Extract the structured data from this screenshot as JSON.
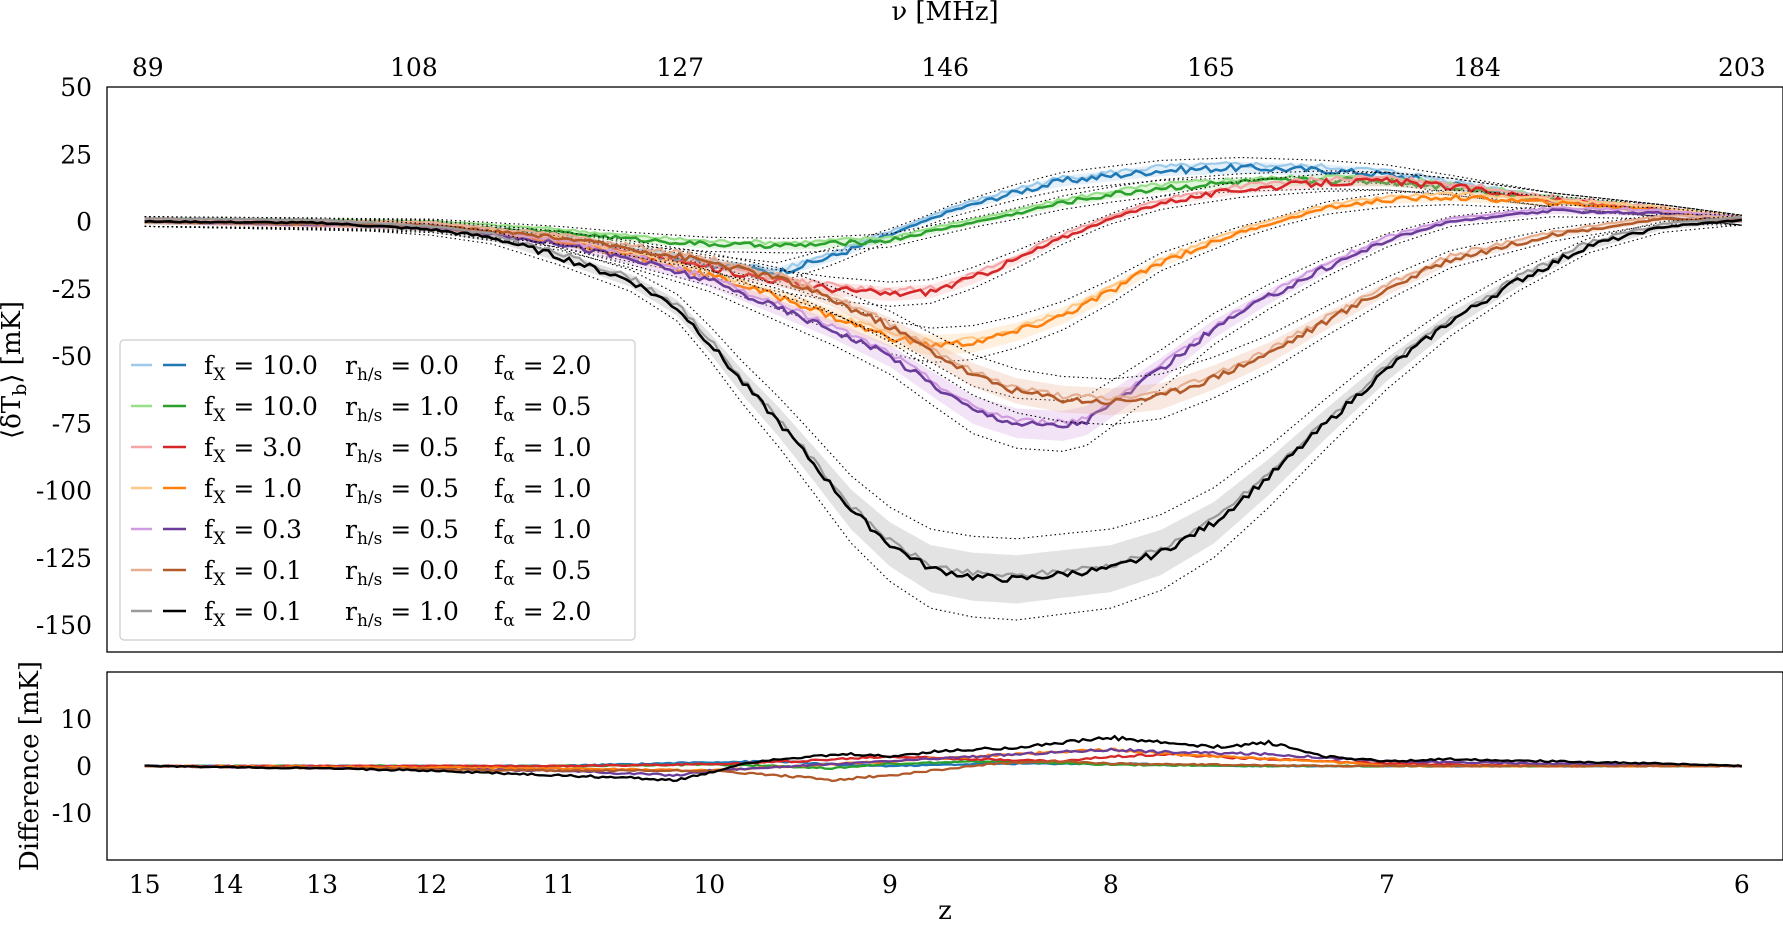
{
  "chart_data": [
    {
      "type": "line",
      "panel": "main",
      "top_xlabel": "ν [MHz]",
      "ylabel_parts": [
        "⟨δT",
        "b",
        "⟩ [mK]"
      ],
      "ylim": [
        -160,
        50
      ],
      "x_is_redshift": true,
      "xlim_z": [
        15.5,
        5.9
      ],
      "yticks": [
        50,
        25,
        0,
        -25,
        -50,
        -75,
        -100,
        -125,
        -150
      ],
      "top_ticks": [
        {
          "label": "89",
          "z": 14.96
        },
        {
          "label": "108",
          "z": 12.15
        },
        {
          "label": "127",
          "z": 10.18
        },
        {
          "label": "146",
          "z": 8.73
        },
        {
          "label": "165",
          "z": 7.61
        },
        {
          "label": "184",
          "z": 6.72
        },
        {
          "label": "203",
          "z": 6.0
        }
      ],
      "grid": false,
      "legend_position": "lower-left",
      "series": [
        {
          "color_light": "#9ecae9",
          "color": "#1f77b4",
          "fx": "10.0",
          "rhs": "0.0",
          "fa": "2.0",
          "z": [
            15,
            12,
            11,
            10.5,
            10,
            9.6,
            9.3,
            9.0,
            8.7,
            8.4,
            8.2,
            8.0,
            7.8,
            7.5,
            7.2,
            7.0,
            6.8,
            6.5,
            6.2,
            6.0
          ],
          "y": [
            0,
            -1.5,
            -6,
            -11,
            -16,
            -19,
            -13,
            -5,
            4,
            11,
            15,
            17,
            19,
            20,
            19,
            17.5,
            14,
            8,
            4,
            0.5
          ]
        },
        {
          "color_light": "#98df8a",
          "color": "#2ca02c",
          "fx": "10.0",
          "rhs": "1.0",
          "fa": "0.5",
          "z": [
            15,
            12,
            11,
            10.5,
            10,
            9.5,
            9.0,
            8.7,
            8.4,
            8.2,
            8.0,
            7.8,
            7.5,
            7.2,
            7.0,
            6.8,
            6.5,
            6.2,
            6.0
          ],
          "y": [
            0,
            -1,
            -4,
            -6.5,
            -8.5,
            -9,
            -7,
            -2,
            3,
            7,
            10,
            12.5,
            14.5,
            15.5,
            15,
            13,
            8,
            4,
            0.5
          ]
        },
        {
          "color_light": "#f4a6a6",
          "color": "#d62728",
          "fx": "3.0",
          "rhs": "0.5",
          "fa": "1.0",
          "z": [
            15,
            12,
            11,
            10.5,
            10,
            9.6,
            9.3,
            9.0,
            8.8,
            8.6,
            8.4,
            8.2,
            8.0,
            7.8,
            7.5,
            7.2,
            7.0,
            6.8,
            6.5,
            6.2,
            6.0
          ],
          "y": [
            0,
            -2,
            -7,
            -12,
            -17,
            -22,
            -25,
            -27,
            -26,
            -21,
            -14,
            -6,
            1,
            7,
            12,
            14.5,
            15,
            13,
            8,
            4,
            0.5
          ]
        },
        {
          "color_light": "#ffc887",
          "color": "#ff7f0e",
          "fx": "1.0",
          "rhs": "0.5",
          "fa": "1.0",
          "z": [
            15,
            12,
            11,
            10.5,
            10,
            9.5,
            9.2,
            9.0,
            8.8,
            8.6,
            8.4,
            8.2,
            8.0,
            7.8,
            7.5,
            7.2,
            7.0,
            6.8,
            6.5,
            6.2,
            6.0
          ],
          "y": [
            0,
            -2,
            -7,
            -13,
            -20,
            -30,
            -38,
            -43,
            -46,
            -45,
            -41,
            -35,
            -26,
            -15,
            -4,
            5,
            8,
            9,
            7,
            4,
            0.5
          ]
        },
        {
          "color_light": "#d19be0",
          "color": "#6a3d9a",
          "fx": "0.3",
          "rhs": "0.5",
          "fa": "1.0",
          "z": [
            15,
            12,
            11,
            10.5,
            10,
            9.6,
            9.3,
            9.0,
            8.8,
            8.6,
            8.4,
            8.2,
            8.1,
            8.0,
            7.8,
            7.6,
            7.4,
            7.2,
            7.0,
            6.8,
            6.5,
            6.2,
            6.0
          ],
          "y": [
            0,
            -2,
            -8,
            -14,
            -22,
            -32,
            -40,
            -50,
            -60,
            -70,
            -75,
            -76,
            -74,
            -68,
            -55,
            -40,
            -28,
            -17,
            -7,
            0,
            4,
            3,
            0.5
          ]
        },
        {
          "color_light": "#e5ae91",
          "color": "#b15928",
          "fx": "0.1",
          "rhs": "0.0",
          "fa": "0.5",
          "z": [
            15,
            12,
            11,
            10.5,
            10,
            9.6,
            9.3,
            9.0,
            8.8,
            8.6,
            8.4,
            8.2,
            8.0,
            7.8,
            7.6,
            7.4,
            7.2,
            7.0,
            6.8,
            6.5,
            6.2,
            6.0
          ],
          "y": [
            0,
            -1.5,
            -6,
            -10,
            -15,
            -21,
            -29,
            -39,
            -48,
            -57,
            -63,
            -66,
            -67,
            -65,
            -58,
            -49,
            -37,
            -25,
            -14,
            -5,
            1,
            0.5
          ]
        },
        {
          "color_light": "#9a9a9a",
          "color": "#000000",
          "fx": "0.1",
          "rhs": "1.0",
          "fa": "2.0",
          "z": [
            15,
            13,
            12,
            11.5,
            11,
            10.5,
            10.2,
            10,
            9.8,
            9.6,
            9.4,
            9.2,
            9.0,
            8.8,
            8.6,
            8.4,
            8.2,
            8.0,
            7.8,
            7.6,
            7.4,
            7.2,
            7.0,
            6.8,
            6.6,
            6.4,
            6.2,
            6.0
          ],
          "y": [
            0,
            -0.5,
            -3,
            -6,
            -13,
            -22,
            -32,
            -45,
            -60,
            -74,
            -90,
            -107,
            -120,
            -129,
            -132,
            -133,
            -131,
            -129,
            -123,
            -112,
            -95,
            -75,
            -55,
            -37,
            -22,
            -9,
            -2,
            0.5
          ]
        }
      ]
    },
    {
      "type": "line",
      "panel": "difference",
      "xlabel": "z",
      "ylabel": "Difference [mK]",
      "ylim": [
        -20,
        20
      ],
      "yticks": [
        10,
        0,
        -10
      ],
      "xticks": [
        "15",
        "14",
        "13",
        "12",
        "11",
        "10",
        "9",
        "8",
        "7",
        "6"
      ],
      "grid": false,
      "series": [
        {
          "color": "#1f77b4",
          "z": [
            15,
            11,
            10,
            9.6,
            9.3,
            9,
            8.5,
            8,
            7.5,
            7,
            6.5,
            6
          ],
          "y": [
            0,
            0,
            0.8,
            1,
            0.3,
            0,
            0.5,
            0.5,
            0,
            0,
            0,
            0
          ]
        },
        {
          "color": "#2ca02c",
          "z": [
            15,
            11,
            10,
            9.6,
            9.3,
            9,
            8.5,
            8,
            7.5,
            7,
            6.5,
            6
          ],
          "y": [
            0,
            0,
            0.3,
            0,
            -0.5,
            0.5,
            1,
            0.3,
            0,
            0,
            0,
            0
          ]
        },
        {
          "color": "#d62728",
          "z": [
            15,
            11,
            10,
            9.5,
            9,
            8.6,
            8.2,
            8,
            7.8,
            7.4,
            7,
            6.5,
            6
          ],
          "y": [
            0,
            0,
            0.4,
            1,
            2,
            1.5,
            1,
            2,
            2.5,
            1.5,
            0.5,
            0,
            0
          ]
        },
        {
          "color": "#ff7f0e",
          "z": [
            15,
            11,
            10,
            9.5,
            9,
            8.6,
            8.2,
            8,
            7.6,
            7.2,
            7,
            6.5,
            6
          ],
          "y": [
            0,
            -0.5,
            -1,
            0,
            1,
            2,
            3,
            3.5,
            2,
            1,
            0,
            0,
            0
          ]
        },
        {
          "color": "#6a3d9a",
          "z": [
            15,
            11,
            10.2,
            10,
            9.5,
            9,
            8.6,
            8.2,
            8,
            7.8,
            7.4,
            7,
            6.5,
            6
          ],
          "y": [
            0,
            -1,
            -2,
            -1,
            0,
            1,
            2,
            3,
            3.5,
            3,
            2.5,
            1,
            0.5,
            0
          ]
        },
        {
          "color": "#b15928",
          "z": [
            15,
            11,
            10,
            9.6,
            9.3,
            9,
            8.8,
            8.5,
            8.2,
            8,
            7.6,
            7.2,
            7,
            6.5,
            6
          ],
          "y": [
            0,
            -1,
            -1,
            -2,
            -3,
            -2,
            -1,
            0.5,
            1,
            0.5,
            0.3,
            0,
            0,
            0,
            0
          ]
        },
        {
          "color": "#000000",
          "z": [
            15,
            13,
            12,
            11.5,
            11,
            10.5,
            10.2,
            10,
            9.8,
            9.6,
            9.4,
            9.2,
            9,
            8.8,
            8.6,
            8.4,
            8.2,
            8,
            7.8,
            7.6,
            7.4,
            7.2,
            7,
            6.8,
            6.5,
            6.2,
            6
          ],
          "y": [
            0,
            -0.5,
            -1,
            -1.5,
            -2,
            -2.5,
            -3,
            -1.5,
            0.5,
            1.5,
            2,
            2.5,
            2,
            3,
            3.5,
            4,
            5,
            6,
            5,
            4,
            5,
            2,
            1,
            1.5,
            1,
            0.5,
            0
          ]
        }
      ]
    }
  ]
}
